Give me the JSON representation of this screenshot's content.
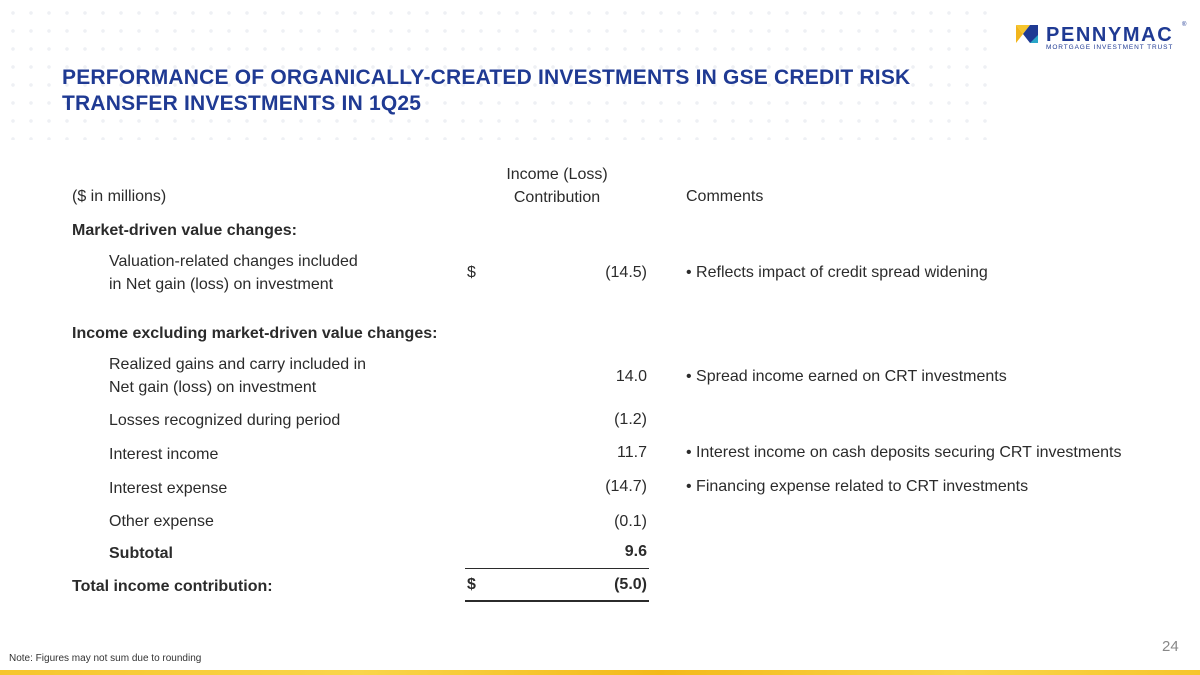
{
  "logo": {
    "name": "PENNYMAC",
    "reg": "®",
    "tagline": "MORTGAGE INVESTMENT TRUST",
    "colors": [
      "#f6c52d",
      "#1f3a93",
      "#2aa6c8"
    ]
  },
  "title": {
    "line1": "PERFORMANCE OF ORGANICALLY-CREATED INVESTMENTS IN GSE CREDIT RISK",
    "line2": "TRANSFER INVESTMENTS IN 1Q25"
  },
  "table": {
    "header": {
      "units": "($ in millions)",
      "income_line1": "Income (Loss)",
      "income_line2": "Contribution",
      "comments": "Comments"
    },
    "market_section": "Market-driven value changes:",
    "valuation": {
      "label_line1": "Valuation-related changes included",
      "label_line2": "in Net gain (loss) on investment",
      "currency": "$",
      "value": "(14.5)",
      "comment": "• Reflects impact of credit spread widening"
    },
    "income_section": "Income excluding market-driven value changes:",
    "realized": {
      "label_line1": "Realized gains and carry included in",
      "label_line2": "Net gain (loss) on investment",
      "value": "14.0",
      "comment": "• Spread income earned on CRT investments"
    },
    "losses": {
      "label": "Losses recognized during period",
      "value": "(1.2)"
    },
    "interest_income": {
      "label": "Interest income",
      "value": "11.7",
      "comment": "• Interest income on cash deposits securing CRT investments"
    },
    "interest_expense": {
      "label": "Interest expense",
      "value": "(14.7)",
      "comment": "• Financing expense related to CRT investments"
    },
    "other_expense": {
      "label": "Other expense",
      "value": "(0.1)"
    },
    "subtotal": {
      "label": "Subtotal",
      "value": "9.6"
    },
    "total": {
      "label": "Total income contribution:",
      "currency": "$",
      "value": "(5.0)"
    }
  },
  "note": "Note: Figures may not sum due to rounding",
  "page_number": "24",
  "accent_color": "#f6c52d",
  "brand_color": "#1f3a93"
}
